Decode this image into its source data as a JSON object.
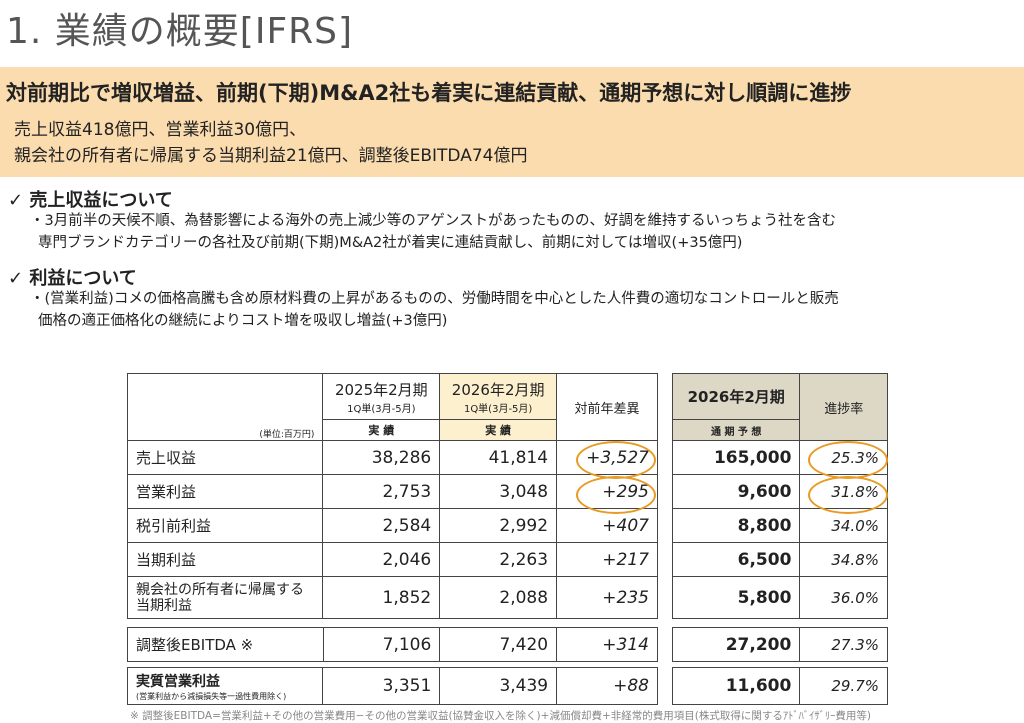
{
  "title": "1. 業績の概要[IFRS]",
  "headline": "対前期比で増収増益、前期(下期)M&A2社も着実に連結貢献、通期予想に対し順調に進捗",
  "summary": [
    "売上収益418億円、営業利益30億円、",
    "親会社の所有者に帰属する当期利益21億円、調整後EBITDA74億円"
  ],
  "sections": [
    {
      "heading": "✓ 売上収益について",
      "lines": [
        "・3月前半の天候不順、為替影響による海外の売上減少等のアゲンストがあったものの、好調を維持するいっちょう社を含む",
        "専門ブランドカテゴリーの各社及び前期(下期)M&A2社が着実に連結貢献し、前期に対しては増収(+35億円)"
      ]
    },
    {
      "heading": "✓ 利益について",
      "lines": [
        "・(営業利益)コメの価格高騰も含め原材料費の上昇があるものの、労働時間を中心とした人件費の適切なコントロールと販売",
        "価格の適正価格化の継続によりコスト増を吸収し増益(+3億円)"
      ]
    }
  ],
  "table": {
    "unit": "(単位:百万円)",
    "col1": {
      "period": "2025年2月期",
      "sub": "1Q単(3月-5月)",
      "kind": "実 績"
    },
    "col2": {
      "period": "2026年2月期",
      "sub": "1Q単(3月-5月)",
      "kind": "実 績"
    },
    "col3": "対前年差異",
    "col4": {
      "period": "2026年2月期",
      "kind": "通 期 予 想"
    },
    "col5": "進捗率",
    "rows": [
      {
        "label": "売上収益",
        "a": "38,286",
        "b": "41,814",
        "diff": "+3,527",
        "plan": "165,000",
        "rate": "25.3%"
      },
      {
        "label": "営業利益",
        "a": "2,753",
        "b": "3,048",
        "diff": "+295",
        "plan": "9,600",
        "rate": "31.8%"
      },
      {
        "label": "税引前利益",
        "a": "2,584",
        "b": "2,992",
        "diff": "+407",
        "plan": "8,800",
        "rate": "34.0%"
      },
      {
        "label": "当期利益",
        "a": "2,046",
        "b": "2,263",
        "diff": "+217",
        "plan": "6,500",
        "rate": "34.8%"
      },
      {
        "label": "親会社の所有者に帰属する当期利益",
        "a": "1,852",
        "b": "2,088",
        "diff": "+235",
        "plan": "5,800",
        "rate": "36.0%"
      },
      {
        "label": "調整後EBITDA ※",
        "a": "7,106",
        "b": "7,420",
        "diff": "+314",
        "plan": "27,200",
        "rate": "27.3%"
      },
      {
        "label": "実質営業利益",
        "sublabel": "(営業利益から減損損失等一過性費用除く)",
        "a": "3,351",
        "b": "3,439",
        "diff": "+88",
        "plan": "11,600",
        "rate": "29.7%"
      }
    ]
  },
  "footnote": "※ 調整後EBITDA=営業利益+その他の営業費用−その他の営業収益(協賛金収入を除く)+減価償却費+非経常的費用項目(株式取得に関するｱﾄﾞﾊﾞｲｻﾞﾘｰ費用等)"
}
